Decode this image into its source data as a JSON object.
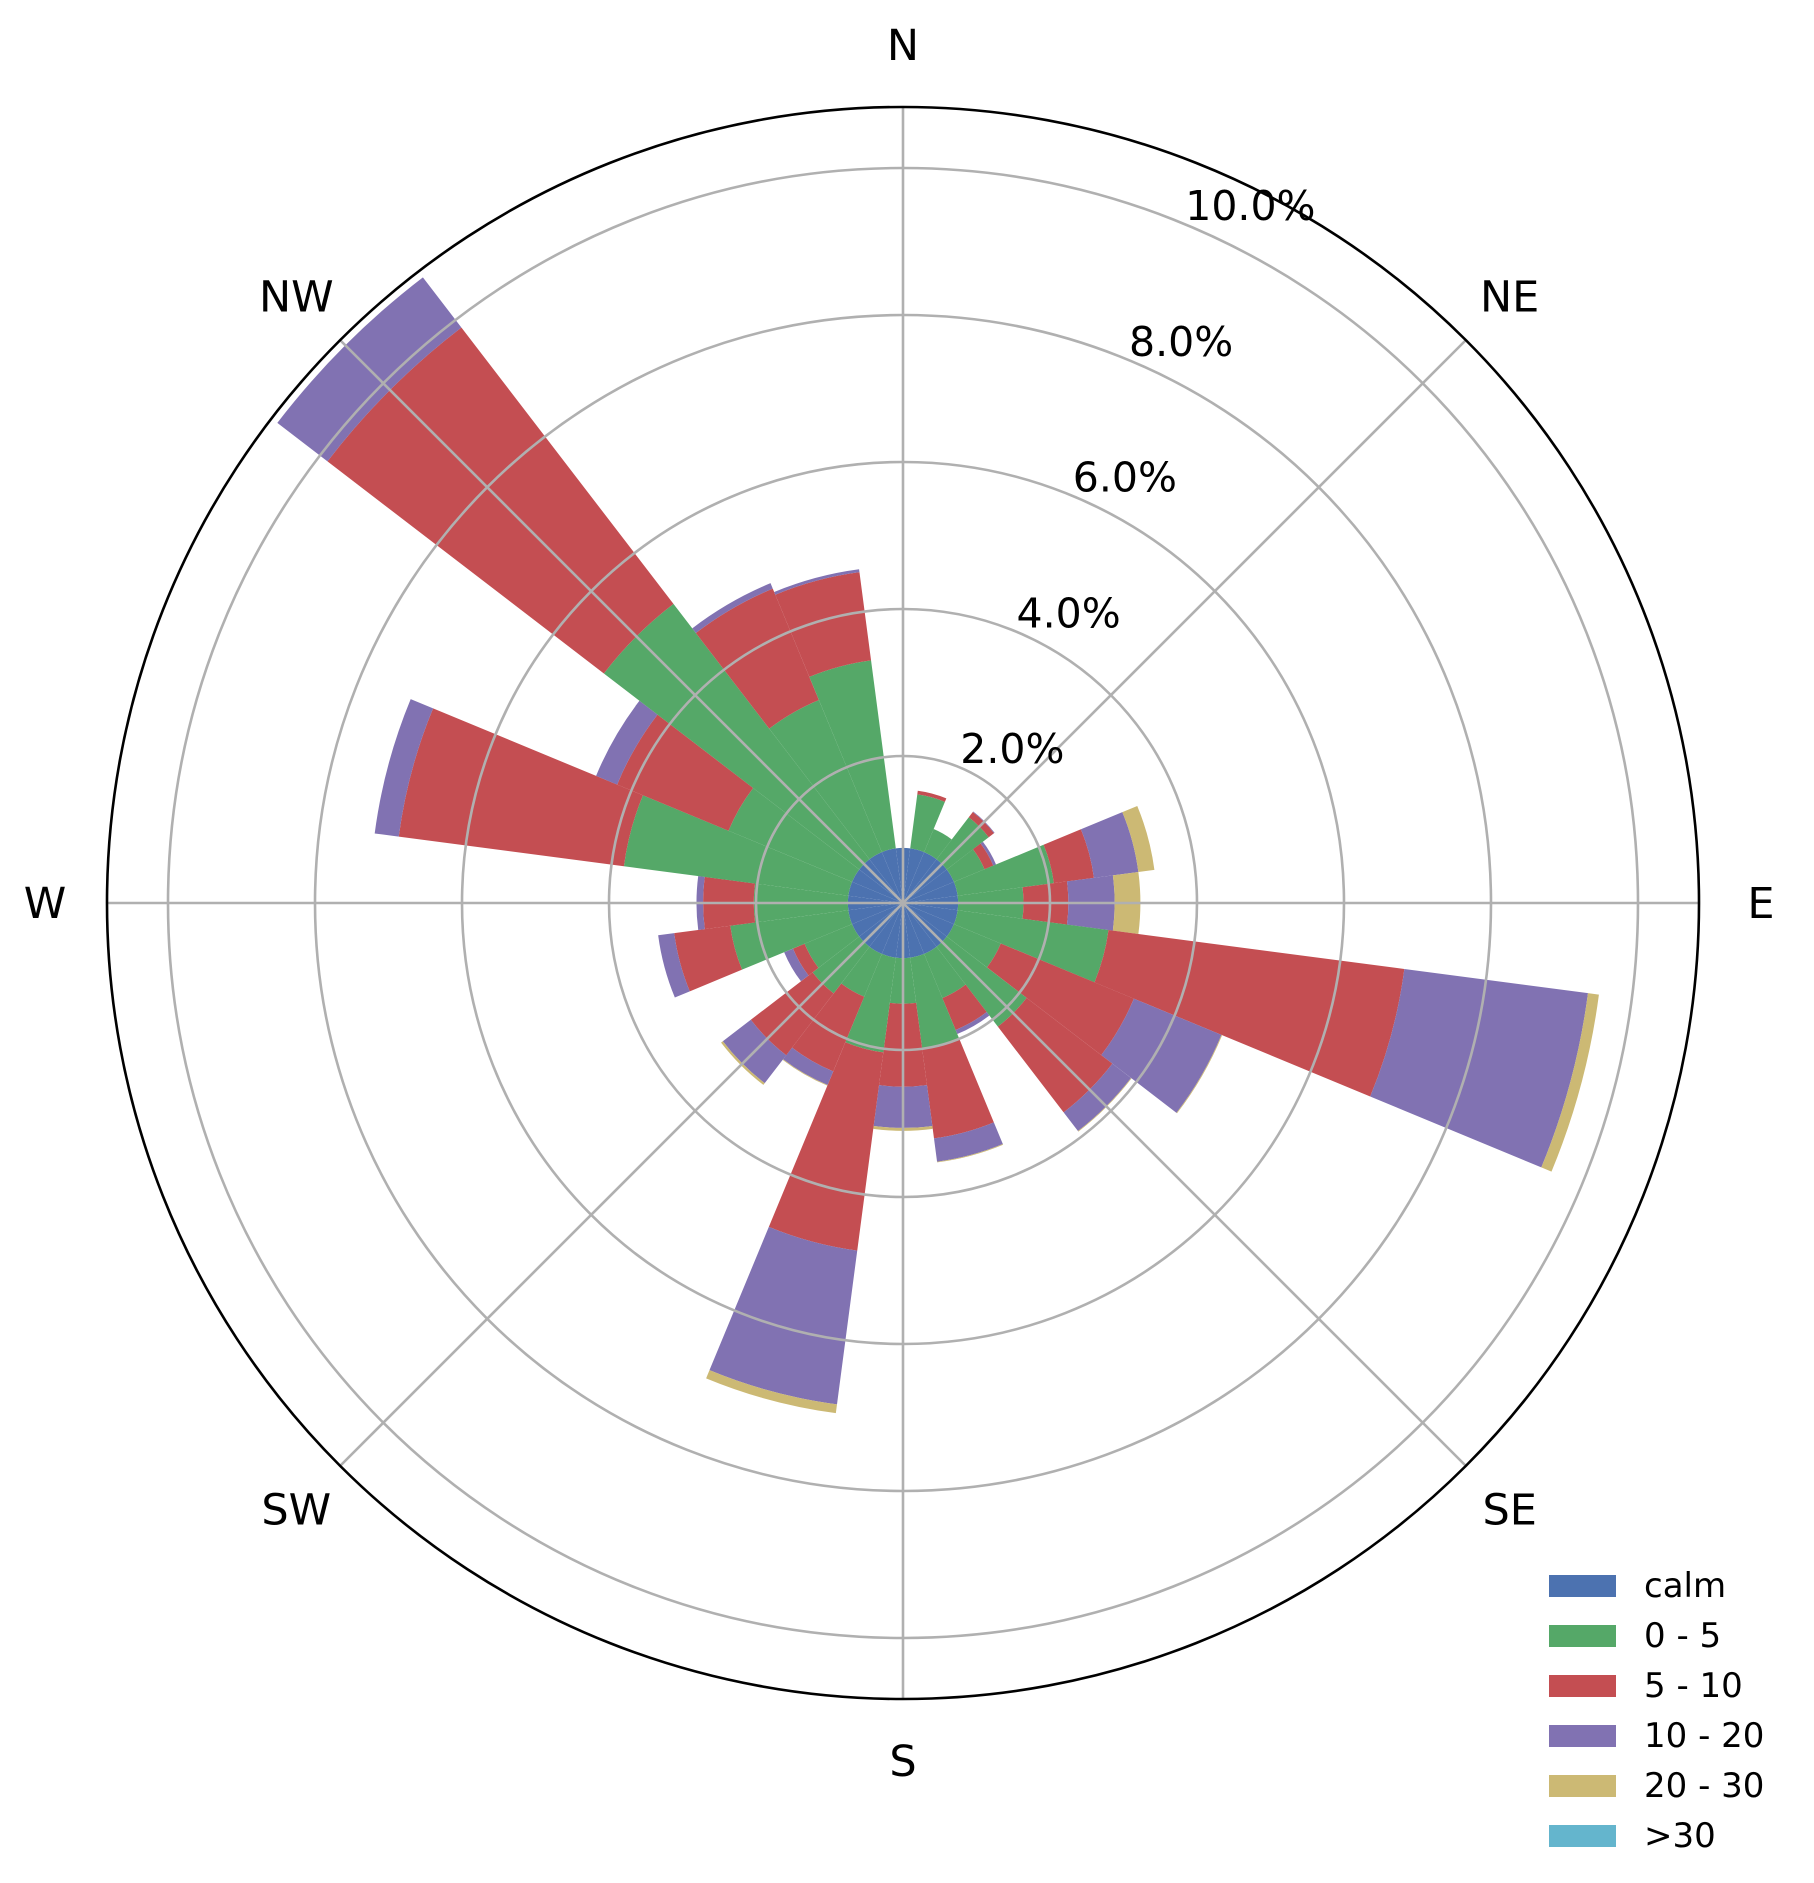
{
  "chart_data": {
    "type": "windrose",
    "directions_deg": [
      0,
      15,
      30,
      45,
      60,
      75,
      90,
      105,
      120,
      135,
      150,
      165,
      180,
      195,
      210,
      225,
      240,
      255,
      270,
      285,
      300,
      315,
      330,
      345
    ],
    "compass_labels": [
      {
        "label": "N",
        "deg": 0
      },
      {
        "label": "NE",
        "deg": 45
      },
      {
        "label": "E",
        "deg": 90
      },
      {
        "label": "SE",
        "deg": 135
      },
      {
        "label": "S",
        "deg": 180
      },
      {
        "label": "SW",
        "deg": 225
      },
      {
        "label": "W",
        "deg": 270
      },
      {
        "label": "NW",
        "deg": 315
      }
    ],
    "radial_ticks": [
      2,
      4,
      6,
      8,
      10
    ],
    "radial_tick_labels": [
      "2.0%",
      "4.0%",
      "6.0%",
      "8.0%",
      "10.0%"
    ],
    "rlim": [
      0,
      10.83
    ],
    "unit": "%",
    "grid": true,
    "legend_position": "bottom-right",
    "calm": {
      "name": "calm",
      "value": 0.75,
      "color": "#4c72b0"
    },
    "series": [
      {
        "name": "0 - 5",
        "color": "#55a868",
        "values": [
          0,
          0.74,
          0.34,
          0.72,
          0.45,
          1.32,
          0.89,
          2.07,
          0.69,
          1.37,
          0.65,
          1.25,
          0.62,
          1.3,
          0.63,
          0.8,
          0.7,
          1.62,
          1.28,
          3.08,
          1.82,
          4.38,
          2.24,
          2.58
        ]
      },
      {
        "name": "5 - 10",
        "color": "#c44e52",
        "values": [
          0,
          0.05,
          0,
          0.09,
          0.13,
          0.55,
          0.61,
          4.06,
          1.96,
          1.47,
          0.47,
          1.23,
          1.13,
          2.72,
          1.1,
          1.06,
          0.17,
          0.77,
          0.69,
          3.09,
          1.64,
          4.74,
          1.64,
          1.21
        ]
      },
      {
        "name": "10 - 20",
        "color": "#8172b2",
        "values": [
          0,
          0,
          0,
          0.01,
          0.04,
          0.61,
          0.63,
          2.52,
          1.29,
          0.32,
          0.06,
          0.32,
          0.56,
          2.11,
          0.2,
          0.48,
          0.13,
          0.22,
          0.09,
          0.33,
          0.31,
          0.86,
          0.08,
          0.04
        ]
      },
      {
        "name": "20 - 30",
        "color": "#ccb974",
        "values": [
          0,
          0,
          0,
          0,
          0,
          0.22,
          0.35,
          0.15,
          0.01,
          0.01,
          0,
          0.01,
          0.04,
          0.12,
          0.01,
          0.03,
          0,
          0,
          0,
          0,
          0,
          0,
          0,
          0
        ]
      },
      {
        "name": ">30",
        "color": "#64b5cd",
        "values": [
          0,
          0,
          0,
          0,
          0,
          0,
          0,
          0,
          0,
          0,
          0,
          0,
          0,
          0,
          0,
          0,
          0,
          0,
          0,
          0,
          0,
          0,
          0,
          0
        ]
      }
    ]
  }
}
